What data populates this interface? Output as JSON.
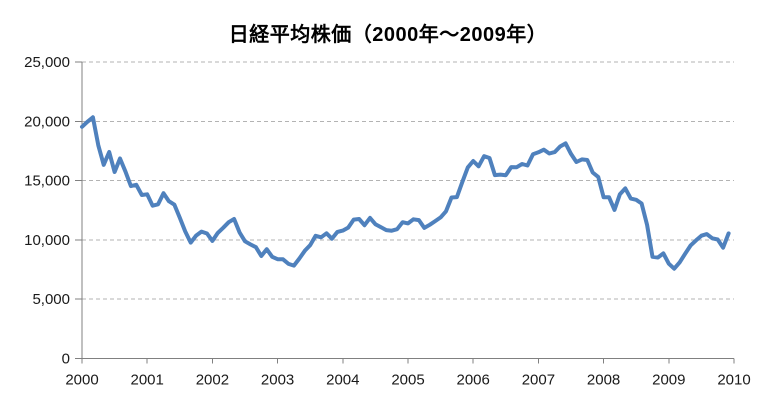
{
  "page": {
    "title": "日経平均株価（2000年～2009年）"
  },
  "style": {
    "line_color": "#4F81BD",
    "grid_color": "#b3b3b3",
    "axis_color": "#808080",
    "text_color": "#1a1a1a",
    "background": "#ffffff"
  },
  "chart_data": {
    "type": "line",
    "title": "日経平均株価（2000年～2009年）",
    "xlabel": "",
    "ylabel": "",
    "x_tick_labels": [
      "2000",
      "2001",
      "2002",
      "2003",
      "2004",
      "2005",
      "2006",
      "2007",
      "2008",
      "2009",
      "2010"
    ],
    "y_ticks": [
      0,
      5000,
      10000,
      15000,
      20000,
      25000
    ],
    "y_tick_labels": [
      "0",
      "5,000",
      "10,000",
      "15,000",
      "20,000",
      "25,000"
    ],
    "ylim": [
      0,
      25000
    ],
    "xlim_years": [
      2000,
      2010
    ],
    "grid": "horizontal-dashed",
    "legend": "none",
    "x_unit": "month",
    "series": [
      {
        "name": "日経平均株価",
        "color": "#4F81BD",
        "start": "2000-01",
        "end": "2009-12",
        "values": [
          19539,
          19959,
          20337,
          17973,
          16332,
          17411,
          15727,
          16861,
          15747,
          14539,
          14648,
          13786,
          13843,
          12884,
          12999,
          13934,
          13262,
          12969,
          11861,
          10714,
          9775,
          10366,
          10697,
          10543,
          9919,
          10588,
          11025,
          11492,
          11764,
          10622,
          9878,
          9619,
          9383,
          8640,
          9216,
          8579,
          8372,
          8363,
          7973,
          7831,
          8425,
          9083,
          9563,
          10343,
          10219,
          10559,
          10100,
          10677,
          10784,
          11041,
          11715,
          11762,
          11236,
          11859,
          11326,
          11082,
          10824,
          10772,
          10899,
          11489,
          11388,
          11740,
          11669,
          11009,
          11277,
          11584,
          11900,
          12414,
          13574,
          13606,
          14872,
          16111,
          16649,
          16205,
          17060,
          16906,
          15467,
          15505,
          15457,
          16141,
          16128,
          16399,
          16274,
          17226,
          17383,
          17604,
          17288,
          17400,
          17876,
          18138,
          17249,
          16569,
          16786,
          16737,
          15681,
          15308,
          13592,
          13603,
          12526,
          13850,
          14339,
          13481,
          13377,
          13073,
          11260,
          8577,
          8512,
          8860,
          7994,
          7568,
          8110,
          8828,
          9523,
          9958,
          10357,
          10493,
          10133,
          10035,
          9346,
          10546
        ]
      }
    ]
  }
}
